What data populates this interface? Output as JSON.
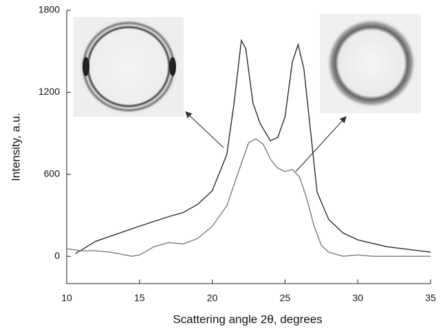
{
  "chart_data": {
    "type": "line",
    "xlabel": "Scattering angle 2θ, degrees",
    "ylabel": "Intensity, a.u.",
    "xlim": [
      10,
      35
    ],
    "xticks": [
      10,
      15,
      20,
      25,
      30,
      35
    ],
    "ylim": [
      -200,
      1800
    ],
    "yticks": [
      0,
      600,
      1200,
      1800
    ],
    "series": [
      {
        "color": "#2a2a2a",
        "x": [
          10.6,
          12,
          15,
          17,
          18,
          19,
          20,
          21,
          21.5,
          22,
          22.3,
          22.8,
          23.3,
          24,
          24.5,
          25,
          25.5,
          25.9,
          26.3,
          26.8,
          27.2,
          28,
          29,
          30,
          32,
          35
        ],
        "values": [
          20,
          110,
          220,
          290,
          320,
          380,
          480,
          745,
          1120,
          1580,
          1520,
          1120,
          970,
          845,
          870,
          1020,
          1420,
          1550,
          1370,
          870,
          470,
          270,
          170,
          120,
          70,
          30
        ]
      },
      {
        "color": "#7a7a7a",
        "x": [
          10,
          11,
          12,
          13,
          14,
          14.5,
          15,
          16,
          17,
          18,
          19,
          20,
          21,
          22,
          22.5,
          23,
          23.5,
          24,
          24.5,
          25,
          25.5,
          26,
          26.5,
          27,
          27.5,
          28,
          29,
          30,
          31,
          35
        ],
        "values": [
          55,
          40,
          40,
          30,
          10,
          0,
          10,
          70,
          100,
          90,
          130,
          220,
          370,
          680,
          830,
          860,
          820,
          710,
          645,
          620,
          635,
          580,
          420,
          220,
          80,
          30,
          0,
          10,
          0,
          0
        ]
      }
    ]
  }
}
